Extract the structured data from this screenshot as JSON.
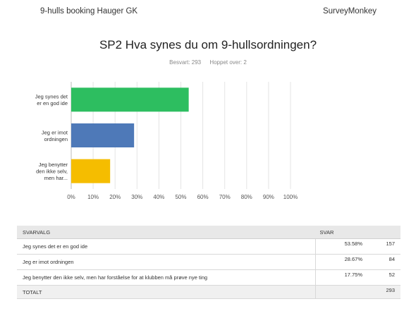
{
  "header": {
    "left": "9-hulls booking Hauger GK",
    "right": "SurveyMonkey"
  },
  "question": {
    "title": "SP2 Hva synes du om 9-hullsordningen?",
    "answered": "Besvart: 293",
    "skipped": "Hoppet over: 2"
  },
  "chart_data": {
    "type": "bar",
    "orientation": "horizontal",
    "categories": [
      [
        "Jeg synes det",
        "er en god ide"
      ],
      [
        "Jeg er imot",
        "ordningen"
      ],
      [
        "Jeg benytter",
        "den ikke selv,",
        "men har..."
      ]
    ],
    "values": [
      53.58,
      28.67,
      17.75
    ],
    "colors": [
      "#2dbe60",
      "#4e79b8",
      "#f5bd00"
    ],
    "xlim": [
      0,
      100
    ],
    "xticks": [
      "0%",
      "10%",
      "20%",
      "30%",
      "40%",
      "50%",
      "60%",
      "70%",
      "80%",
      "90%",
      "100%"
    ],
    "grid": true
  },
  "table": {
    "col_answer": "SVARVALG",
    "col_response": "SVAR",
    "rows": [
      {
        "label": "Jeg synes det er en god ide",
        "pct": "53.58%",
        "count": "157"
      },
      {
        "label": "Jeg er imot ordningen",
        "pct": "28.67%",
        "count": "84"
      },
      {
        "label": "Jeg benytter den ikke selv, men har forståelse for at klubben må prøve nye ting",
        "pct": "17.75%",
        "count": "52"
      }
    ],
    "total_label": "TOTALT",
    "total_count": "293"
  }
}
